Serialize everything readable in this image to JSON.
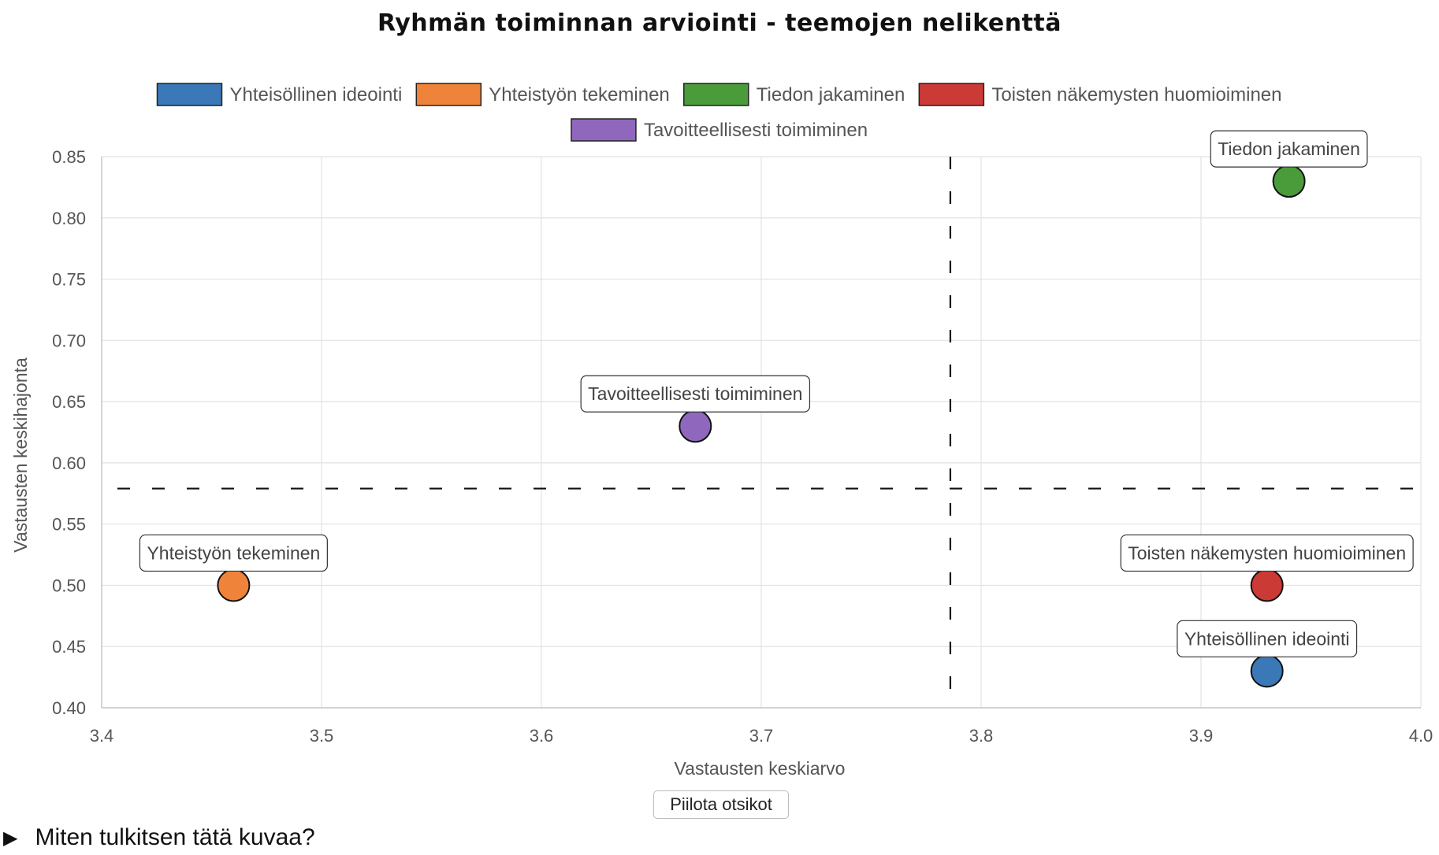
{
  "chart_data": {
    "type": "scatter",
    "title": "Ryhmän toiminnan arviointi - teemojen nelikenttä",
    "xlabel": "Vastausten keskiarvo",
    "ylabel": "Vastausten keskihajonta",
    "xlim": [
      3.4,
      4.0
    ],
    "ylim": [
      0.4,
      0.85
    ],
    "x_ticks": [
      "3.4",
      "3.5",
      "3.6",
      "3.7",
      "3.8",
      "3.9",
      "4.0"
    ],
    "y_ticks": [
      "0.40",
      "0.45",
      "0.50",
      "0.55",
      "0.60",
      "0.65",
      "0.70",
      "0.75",
      "0.80",
      "0.85"
    ],
    "grid": true,
    "legend_position": "top",
    "reference_lines": {
      "x": 3.786,
      "y": 0.579
    },
    "series": [
      {
        "name": "Yhteisöllinen ideointi",
        "color": "#3a78b7",
        "x": 3.93,
        "y": 0.43
      },
      {
        "name": "Yhteistyön tekeminen",
        "color": "#f0833a",
        "x": 3.46,
        "y": 0.5
      },
      {
        "name": "Tiedon jakaminen",
        "color": "#4a9c3a",
        "x": 3.94,
        "y": 0.83
      },
      {
        "name": "Toisten näkemysten huomioiminen",
        "color": "#cc3a36",
        "x": 3.93,
        "y": 0.5
      },
      {
        "name": "Tavoitteellisesti toimiminen",
        "color": "#8f68bd",
        "x": 3.67,
        "y": 0.63
      }
    ]
  },
  "controls": {
    "toggle_labels_button": "Piilota otsikot",
    "interpret_summary": "Miten tulkitsen tätä kuvaa?"
  }
}
